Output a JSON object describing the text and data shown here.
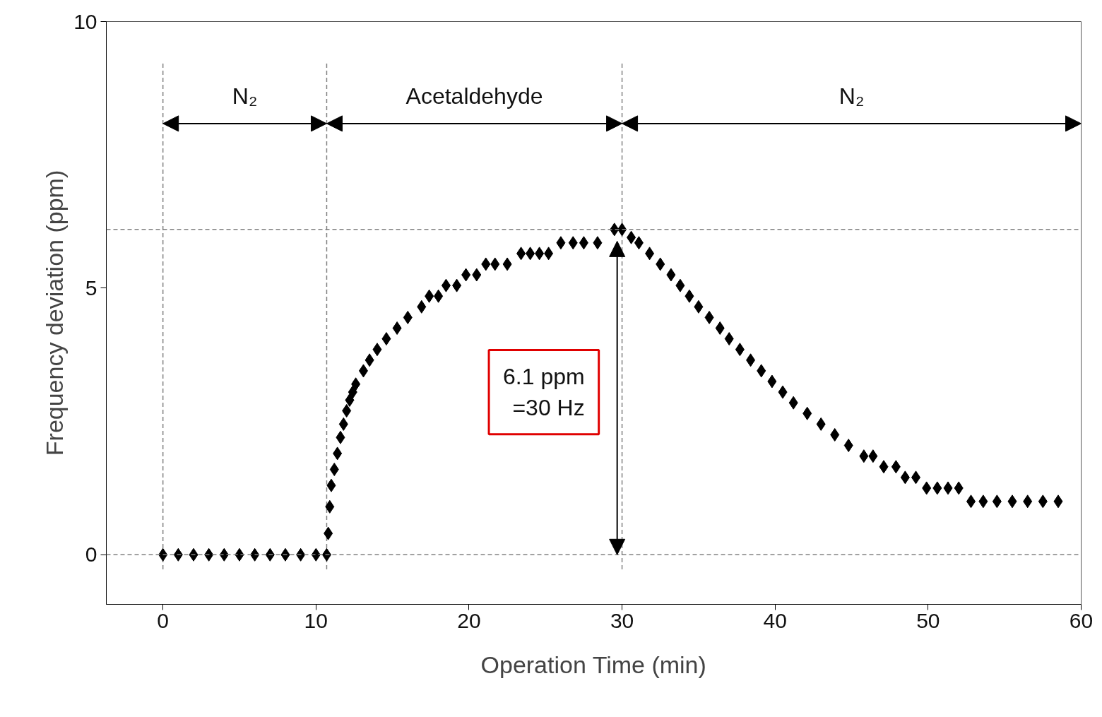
{
  "chart_data": {
    "type": "scatter",
    "xlabel": "Operation Time (min)",
    "ylabel": "Frequency deviation (ppm)",
    "xlim": [
      -3.7,
      60
    ],
    "ylim": [
      -0.93,
      10
    ],
    "xticks": [
      0,
      10,
      20,
      30,
      40,
      50,
      60
    ],
    "yticks": [
      0,
      5,
      10
    ],
    "marker": "diamond",
    "grid": false,
    "series": [
      {
        "color": "#000000",
        "x": [
          0,
          1,
          2,
          3,
          4,
          5,
          6,
          7,
          8,
          9,
          10,
          10.7,
          10.8,
          10.9,
          11.0,
          11.2,
          11.4,
          11.6,
          11.8,
          12.0,
          12.2,
          12.4,
          12.6,
          13.1,
          13.5,
          14.0,
          14.6,
          15.3,
          16.0,
          16.9,
          17.4,
          18.0,
          18.5,
          19.2,
          19.8,
          20.5,
          21.1,
          21.7,
          22.5,
          23.4,
          24.0,
          24.6,
          25.2,
          26.0,
          26.8,
          27.5,
          28.4,
          29.5,
          30.0,
          30.6,
          31.1,
          31.8,
          32.5,
          33.2,
          33.8,
          34.4,
          35.0,
          35.7,
          36.4,
          37.0,
          37.7,
          38.4,
          39.1,
          39.8,
          40.5,
          41.2,
          42.1,
          43.0,
          43.9,
          44.8,
          45.8,
          46.4,
          47.1,
          47.9,
          48.5,
          49.2,
          49.9,
          50.6,
          51.3,
          52.0,
          52.8,
          53.6,
          54.5,
          55.5,
          56.5,
          57.5,
          58.5
        ],
        "values": [
          0,
          0,
          0,
          0,
          0,
          0,
          0,
          0,
          0,
          0,
          0,
          0,
          0.4,
          0.9,
          1.3,
          1.6,
          1.9,
          2.2,
          2.45,
          2.7,
          2.9,
          3.05,
          3.2,
          3.45,
          3.65,
          3.85,
          4.05,
          4.25,
          4.45,
          4.65,
          4.85,
          4.85,
          5.05,
          5.05,
          5.25,
          5.25,
          5.45,
          5.45,
          5.45,
          5.65,
          5.65,
          5.65,
          5.65,
          5.85,
          5.85,
          5.85,
          5.85,
          6.1,
          6.1,
          5.95,
          5.85,
          5.65,
          5.45,
          5.25,
          5.05,
          4.85,
          4.65,
          4.45,
          4.25,
          4.05,
          3.85,
          3.65,
          3.45,
          3.25,
          3.05,
          2.85,
          2.65,
          2.45,
          2.25,
          2.05,
          1.85,
          1.85,
          1.65,
          1.65,
          1.45,
          1.45,
          1.25,
          1.25,
          1.25,
          1.25,
          1.0,
          1.0,
          1.0,
          1.0,
          1.0,
          1.0,
          1.0
        ]
      }
    ],
    "ref_lines": [
      {
        "axis": "x",
        "value": 0,
        "line_style": "dashed",
        "color": "#808080"
      },
      {
        "axis": "x",
        "value": 10.7,
        "line_style": "dashed",
        "color": "#808080"
      },
      {
        "axis": "x",
        "value": 30,
        "line_style": "dashed",
        "color": "#808080"
      },
      {
        "axis": "y",
        "value": 0,
        "line_style": "dashed",
        "color": "#808080"
      },
      {
        "axis": "y",
        "value": 6.1,
        "line_style": "dashed",
        "color": "#808080"
      }
    ],
    "annotations": [
      "N₂",
      "Acetaldehyde",
      "N₂",
      "6.1 ppm\n=30 Hz"
    ]
  }
}
